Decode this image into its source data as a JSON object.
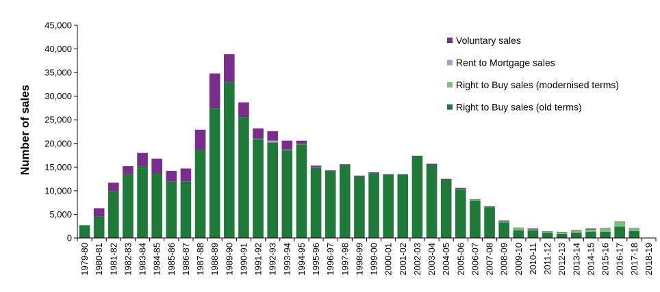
{
  "chart_data": {
    "type": "bar",
    "stacked": true,
    "ylabel": "Number of sales",
    "xlabel": "",
    "ylim": [
      0,
      45000
    ],
    "yticks": [
      0,
      5000,
      10000,
      15000,
      20000,
      25000,
      30000,
      35000,
      40000,
      45000
    ],
    "ytick_labels": [
      "0",
      "5,000",
      "10,000",
      "15,000",
      "20,000",
      "25,000",
      "30,000",
      "35,000",
      "40,000",
      "45,000"
    ],
    "grid": false,
    "legend_position": "top-right",
    "categories": [
      "1979-80",
      "1980-81",
      "1981-82",
      "1982-83",
      "1983-84",
      "1984-85",
      "1985-86",
      "1986-87",
      "1987-88",
      "1988-89",
      "1989-90",
      "1990-91",
      "1991-92",
      "1992-93",
      "1993-94",
      "1994-95",
      "1995-96",
      "1996-97",
      "1997-98",
      "1998-99",
      "1999-00",
      "2000-01",
      "2001-02",
      "2002-03",
      "2003-04",
      "2004-05",
      "2005-06",
      "2006-07",
      "2007-08",
      "2008-09",
      "2009-10",
      "2010-11",
      "2011-12",
      "2012-13",
      "2013-14",
      "2014-15",
      "2015-16",
      "2016-17",
      "2017-18",
      "2018-19"
    ],
    "series": [
      {
        "name": "Right to Buy sales (old terms)",
        "color": "#1f7a3a",
        "values": [
          2700,
          4500,
          9800,
          13400,
          15100,
          13600,
          11900,
          11900,
          18600,
          27400,
          32900,
          25600,
          20900,
          20200,
          18600,
          19800,
          14800,
          14100,
          15400,
          13000,
          13700,
          13400,
          13400,
          17300,
          15400,
          12300,
          10300,
          7900,
          6500,
          3300,
          1600,
          1600,
          1100,
          900,
          1100,
          1300,
          1300,
          2400,
          1500,
          0
        ]
      },
      {
        "name": "Right to Buy sales (modernised terms)",
        "color": "#7fbf7b",
        "values": [
          0,
          0,
          0,
          0,
          0,
          0,
          0,
          0,
          0,
          0,
          0,
          0,
          0,
          0,
          0,
          0,
          0,
          0,
          0,
          0,
          0,
          0,
          0,
          0,
          0,
          0,
          100,
          200,
          200,
          200,
          500,
          200,
          200,
          300,
          500,
          500,
          700,
          1000,
          500,
          0
        ]
      },
      {
        "name": "Rent to Mortgage sales",
        "color": "#b995cc",
        "values": [
          0,
          0,
          0,
          0,
          0,
          0,
          0,
          0,
          0,
          0,
          0,
          0,
          100,
          400,
          100,
          100,
          100,
          0,
          0,
          0,
          0,
          0,
          0,
          0,
          0,
          0,
          0,
          0,
          0,
          0,
          0,
          0,
          0,
          0,
          0,
          0,
          0,
          0,
          0,
          0
        ]
      },
      {
        "name": "Voluntary sales",
        "color": "#7a2e8b",
        "values": [
          0,
          1800,
          1900,
          1800,
          2900,
          3200,
          2300,
          2800,
          4300,
          7400,
          6000,
          3100,
          2200,
          2000,
          1900,
          700,
          400,
          200,
          200,
          200,
          200,
          100,
          100,
          100,
          300,
          200,
          200,
          100,
          100,
          200,
          100,
          200,
          100,
          100,
          100,
          200,
          100,
          100,
          100,
          0
        ]
      }
    ]
  }
}
